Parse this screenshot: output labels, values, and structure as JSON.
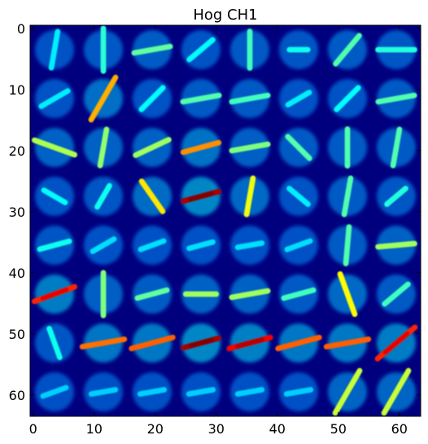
{
  "figure": {
    "title": "Hog CH1",
    "x_ticks": [
      "0",
      "10",
      "20",
      "30",
      "40",
      "50",
      "60"
    ],
    "y_ticks": [
      "0",
      "10",
      "20",
      "30",
      "40",
      "50",
      "60"
    ],
    "x_range": [
      -0.5,
      63.5
    ],
    "y_range": [
      -0.5,
      63.5
    ],
    "colormap": "jet",
    "background_color": "#00007f",
    "frame_color": "#000000"
  },
  "hog": {
    "grid_cells": 8,
    "cell_size_px": 8,
    "strokes": [
      {
        "cx": 3.5,
        "cy": 3.5,
        "angle": 80,
        "len": 6,
        "mag": 0.18
      },
      {
        "cx": 11.5,
        "cy": 3.5,
        "angle": 90,
        "len": 7,
        "mag": 0.25
      },
      {
        "cx": 19.5,
        "cy": 3.5,
        "angle": 10,
        "len": 6,
        "mag": 0.32
      },
      {
        "cx": 27.5,
        "cy": 3.5,
        "angle": 40,
        "len": 5,
        "mag": 0.2
      },
      {
        "cx": 35.5,
        "cy": 3.5,
        "angle": 90,
        "len": 6,
        "mag": 0.28
      },
      {
        "cx": 43.5,
        "cy": 3.5,
        "angle": 0,
        "len": 3,
        "mag": 0.22
      },
      {
        "cx": 51.5,
        "cy": 3.5,
        "angle": 50,
        "len": 6,
        "mag": 0.3
      },
      {
        "cx": 59.5,
        "cy": 3.5,
        "angle": 0,
        "len": 6,
        "mag": 0.24
      },
      {
        "cx": 3.5,
        "cy": 11.5,
        "angle": 30,
        "len": 5,
        "mag": 0.18
      },
      {
        "cx": 11.5,
        "cy": 11.5,
        "angle": 60,
        "len": 8,
        "mag": 0.62
      },
      {
        "cx": 19.5,
        "cy": 11.5,
        "angle": 45,
        "len": 5,
        "mag": 0.2
      },
      {
        "cx": 27.5,
        "cy": 11.5,
        "angle": 10,
        "len": 6,
        "mag": 0.3
      },
      {
        "cx": 35.5,
        "cy": 11.5,
        "angle": 10,
        "len": 6,
        "mag": 0.28
      },
      {
        "cx": 43.5,
        "cy": 11.5,
        "angle": 30,
        "len": 4,
        "mag": 0.18
      },
      {
        "cx": 51.5,
        "cy": 11.5,
        "angle": 45,
        "len": 5,
        "mag": 0.2
      },
      {
        "cx": 59.5,
        "cy": 11.5,
        "angle": 10,
        "len": 6,
        "mag": 0.3
      },
      {
        "cx": 3.5,
        "cy": 19.5,
        "angle": -20,
        "len": 7,
        "mag": 0.42
      },
      {
        "cx": 11.5,
        "cy": 19.5,
        "angle": 80,
        "len": 6,
        "mag": 0.38
      },
      {
        "cx": 19.5,
        "cy": 19.5,
        "angle": 25,
        "len": 6,
        "mag": 0.4
      },
      {
        "cx": 27.5,
        "cy": 19.5,
        "angle": 15,
        "len": 6,
        "mag": 0.66
      },
      {
        "cx": 35.5,
        "cy": 19.5,
        "angle": 10,
        "len": 6,
        "mag": 0.36
      },
      {
        "cx": 43.5,
        "cy": 19.5,
        "angle": -45,
        "len": 5,
        "mag": 0.3
      },
      {
        "cx": 51.5,
        "cy": 19.5,
        "angle": 90,
        "len": 6,
        "mag": 0.3
      },
      {
        "cx": 59.5,
        "cy": 19.5,
        "angle": 80,
        "len": 6,
        "mag": 0.3
      },
      {
        "cx": 3.5,
        "cy": 27.5,
        "angle": -30,
        "len": 4,
        "mag": 0.2
      },
      {
        "cx": 11.5,
        "cy": 27.5,
        "angle": 60,
        "len": 4,
        "mag": 0.22
      },
      {
        "cx": 19.5,
        "cy": 27.5,
        "angle": -55,
        "len": 6,
        "mag": 0.55
      },
      {
        "cx": 27.5,
        "cy": 27.5,
        "angle": 15,
        "len": 6,
        "mag": 0.95
      },
      {
        "cx": 35.5,
        "cy": 27.5,
        "angle": 80,
        "len": 6,
        "mag": 0.5
      },
      {
        "cx": 43.5,
        "cy": 27.5,
        "angle": -40,
        "len": 4,
        "mag": 0.18
      },
      {
        "cx": 51.5,
        "cy": 27.5,
        "angle": 80,
        "len": 6,
        "mag": 0.3
      },
      {
        "cx": 59.5,
        "cy": 27.5,
        "angle": 40,
        "len": 4,
        "mag": 0.24
      },
      {
        "cx": 3.5,
        "cy": 35.5,
        "angle": 15,
        "len": 5,
        "mag": 0.22
      },
      {
        "cx": 11.5,
        "cy": 35.5,
        "angle": 30,
        "len": 4,
        "mag": 0.16
      },
      {
        "cx": 19.5,
        "cy": 35.5,
        "angle": 20,
        "len": 4,
        "mag": 0.16
      },
      {
        "cx": 27.5,
        "cy": 35.5,
        "angle": 15,
        "len": 4,
        "mag": 0.16
      },
      {
        "cx": 35.5,
        "cy": 35.5,
        "angle": 10,
        "len": 4,
        "mag": 0.16
      },
      {
        "cx": 43.5,
        "cy": 35.5,
        "angle": 20,
        "len": 4,
        "mag": 0.16
      },
      {
        "cx": 51.5,
        "cy": 35.5,
        "angle": 85,
        "len": 6,
        "mag": 0.3
      },
      {
        "cx": 59.5,
        "cy": 35.5,
        "angle": 5,
        "len": 6,
        "mag": 0.4
      },
      {
        "cx": 3.5,
        "cy": 43.5,
        "angle": 20,
        "len": 7,
        "mag": 0.8
      },
      {
        "cx": 11.5,
        "cy": 43.5,
        "angle": 90,
        "len": 7,
        "mag": 0.36
      },
      {
        "cx": 19.5,
        "cy": 43.5,
        "angle": 15,
        "len": 5,
        "mag": 0.32
      },
      {
        "cx": 27.5,
        "cy": 43.5,
        "angle": 0,
        "len": 5,
        "mag": 0.4
      },
      {
        "cx": 35.5,
        "cy": 43.5,
        "angle": 10,
        "len": 6,
        "mag": 0.4
      },
      {
        "cx": 43.5,
        "cy": 43.5,
        "angle": 15,
        "len": 5,
        "mag": 0.28
      },
      {
        "cx": 51.5,
        "cy": 43.5,
        "angle": -70,
        "len": 7,
        "mag": 0.52
      },
      {
        "cx": 59.5,
        "cy": 43.5,
        "angle": 40,
        "len": 5,
        "mag": 0.28
      },
      {
        "cx": 3.5,
        "cy": 51.5,
        "angle": -70,
        "len": 5,
        "mag": 0.22
      },
      {
        "cx": 11.5,
        "cy": 51.5,
        "angle": 10,
        "len": 7,
        "mag": 0.7
      },
      {
        "cx": 19.5,
        "cy": 51.5,
        "angle": 15,
        "len": 7,
        "mag": 0.72
      },
      {
        "cx": 27.5,
        "cy": 51.5,
        "angle": 15,
        "len": 6,
        "mag": 0.95
      },
      {
        "cx": 35.5,
        "cy": 51.5,
        "angle": 15,
        "len": 7,
        "mag": 0.85
      },
      {
        "cx": 43.5,
        "cy": 51.5,
        "angle": 15,
        "len": 7,
        "mag": 0.72
      },
      {
        "cx": 51.5,
        "cy": 51.5,
        "angle": 10,
        "len": 7,
        "mag": 0.72
      },
      {
        "cx": 59.5,
        "cy": 51.5,
        "angle": 40,
        "len": 8,
        "mag": 0.8
      },
      {
        "cx": 3.5,
        "cy": 59.5,
        "angle": 20,
        "len": 4,
        "mag": 0.14
      },
      {
        "cx": 11.5,
        "cy": 59.5,
        "angle": 10,
        "len": 4,
        "mag": 0.14
      },
      {
        "cx": 19.5,
        "cy": 59.5,
        "angle": 10,
        "len": 4,
        "mag": 0.14
      },
      {
        "cx": 27.5,
        "cy": 59.5,
        "angle": 10,
        "len": 4,
        "mag": 0.14
      },
      {
        "cx": 35.5,
        "cy": 59.5,
        "angle": 10,
        "len": 4,
        "mag": 0.14
      },
      {
        "cx": 43.5,
        "cy": 59.5,
        "angle": 10,
        "len": 4,
        "mag": 0.14
      },
      {
        "cx": 51.5,
        "cy": 59.5,
        "angle": 60,
        "len": 8,
        "mag": 0.45
      },
      {
        "cx": 59.5,
        "cy": 59.5,
        "angle": 60,
        "len": 8,
        "mag": 0.45
      }
    ]
  }
}
